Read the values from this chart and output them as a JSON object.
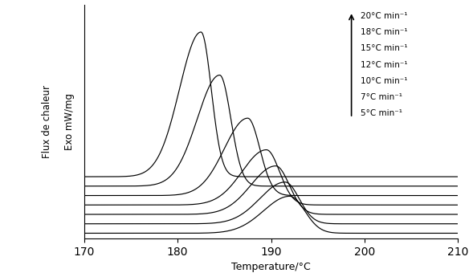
{
  "xlim": [
    170,
    210
  ],
  "xlabel": "Temperature/°C",
  "ylabel1": "Flux de chaleur",
  "ylabel2": "Exo mW/mg",
  "xticks": [
    170,
    180,
    190,
    200,
    210
  ],
  "rates": [
    5,
    7,
    10,
    12,
    15,
    18,
    20
  ],
  "peak_temps": [
    192.0,
    191.5,
    190.5,
    189.5,
    187.5,
    184.5,
    182.5
  ],
  "peak_heights": [
    0.55,
    0.62,
    0.72,
    0.82,
    1.15,
    1.65,
    2.15
  ],
  "sigma_left": [
    2.8,
    2.7,
    2.65,
    2.6,
    2.5,
    2.4,
    2.3
  ],
  "sigma_right": [
    1.6,
    1.5,
    1.45,
    1.4,
    1.3,
    1.2,
    1.1
  ],
  "baselines": [
    0.0,
    0.14,
    0.28,
    0.42,
    0.56,
    0.7,
    0.84
  ],
  "line_color": "#000000",
  "background_color": "white",
  "legend_rates": [
    "20°C min⁻¹",
    "18°C min⁻¹",
    "15°C min⁻¹",
    "12°C min⁻¹",
    "10°C min⁻¹",
    "7°C min⁻¹",
    "5°C min⁻¹"
  ],
  "figsize": [
    5.89,
    3.45
  ],
  "dpi": 100
}
